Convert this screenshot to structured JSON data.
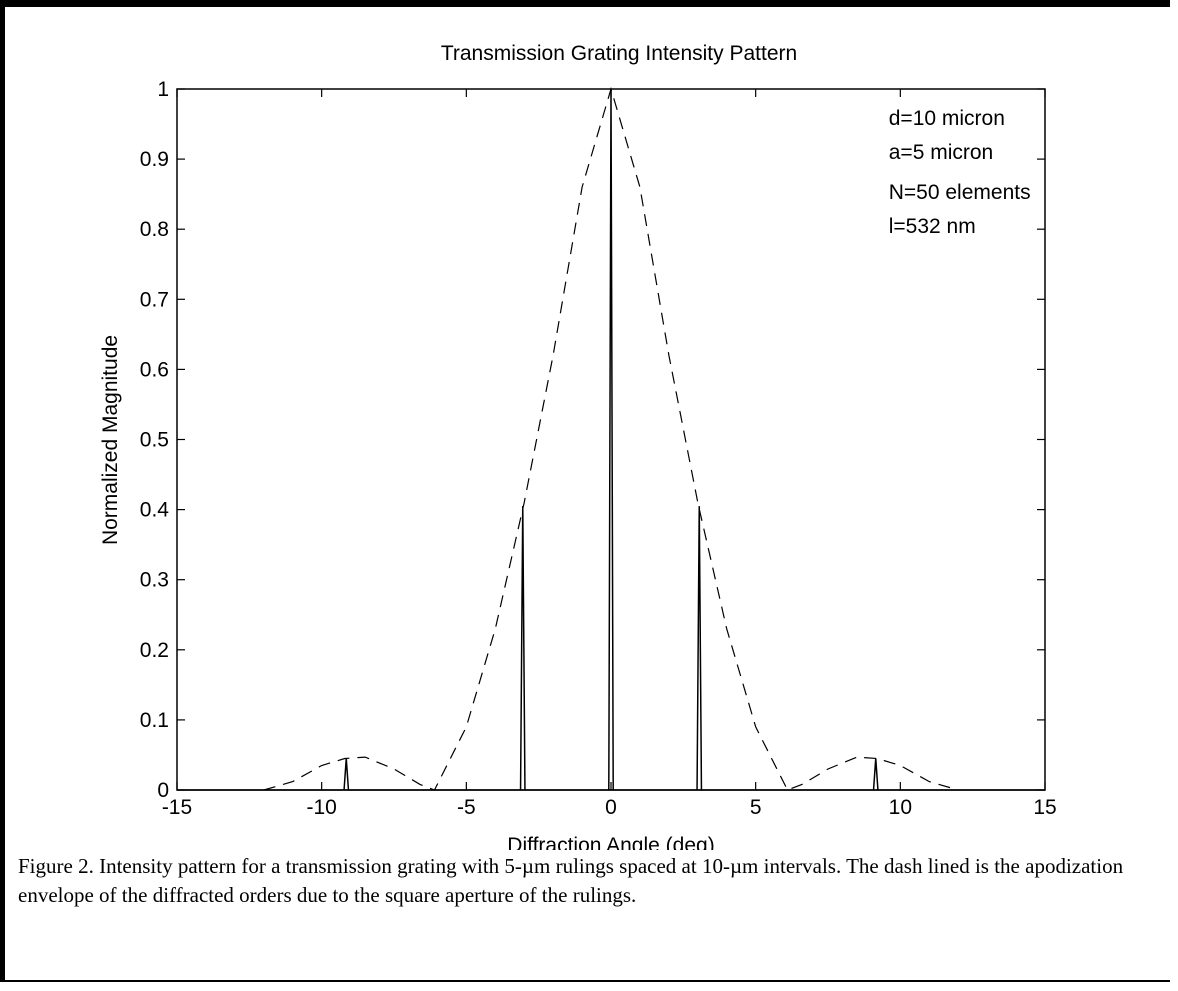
{
  "chart_data": {
    "type": "line",
    "title": "Transmission Grating Intensity Pattern",
    "xlabel": "Diffraction Angle (deg)",
    "ylabel": "Normalized Magnitude",
    "xlim": [
      -15,
      15
    ],
    "ylim": [
      0,
      1
    ],
    "xticks": [
      -15,
      -10,
      -5,
      0,
      5,
      10,
      15
    ],
    "yticks": [
      0,
      0.1,
      0.2,
      0.3,
      0.4,
      0.5,
      0.6,
      0.7,
      0.8,
      0.9,
      1
    ],
    "xtick_labels": [
      "-15",
      "-10",
      "-5",
      "0",
      "5",
      "10",
      "15"
    ],
    "ytick_labels": [
      "0",
      "0.1",
      "0.2",
      "0.3",
      "0.4",
      "0.5",
      "0.6",
      "0.7",
      "0.8",
      "0.9",
      "1"
    ],
    "grid": false,
    "annotations": [
      "d=10 micron",
      "a=5 micron",
      "N=50 elements",
      "l=532 nm"
    ],
    "series": [
      {
        "style": "dashed",
        "x": [
          -12,
          -11,
          -10,
          -9.2,
          -8.5,
          -7.5,
          -6.6,
          -6.1,
          -5,
          -4,
          -3,
          -2,
          -1,
          0,
          1,
          2,
          3,
          4,
          5,
          6.1,
          6.6,
          7.5,
          8.5,
          9.2,
          10,
          11,
          12
        ],
        "y": [
          0,
          0.012,
          0.035,
          0.045,
          0.047,
          0.03,
          0.008,
          0,
          0.09,
          0.23,
          0.41,
          0.62,
          0.86,
          1.0,
          0.86,
          0.62,
          0.41,
          0.23,
          0.09,
          0,
          0.008,
          0.03,
          0.047,
          0.045,
          0.035,
          0.012,
          0
        ]
      },
      {
        "style": "solid",
        "peaks": [
          {
            "x": -9.15,
            "y": 0.045
          },
          {
            "x": -3.05,
            "y": 0.405
          },
          {
            "x": 0,
            "y": 1.0
          },
          {
            "x": 3.05,
            "y": 0.405
          },
          {
            "x": 9.15,
            "y": 0.045
          }
        ]
      }
    ]
  },
  "caption": {
    "text": "Figure 2. Intensity pattern for a transmission grating with 5-µm rulings spaced at 10-µm intervals. The dash lined is the apodization envelope of the diffracted orders due to the square aperture of the rulings."
  }
}
